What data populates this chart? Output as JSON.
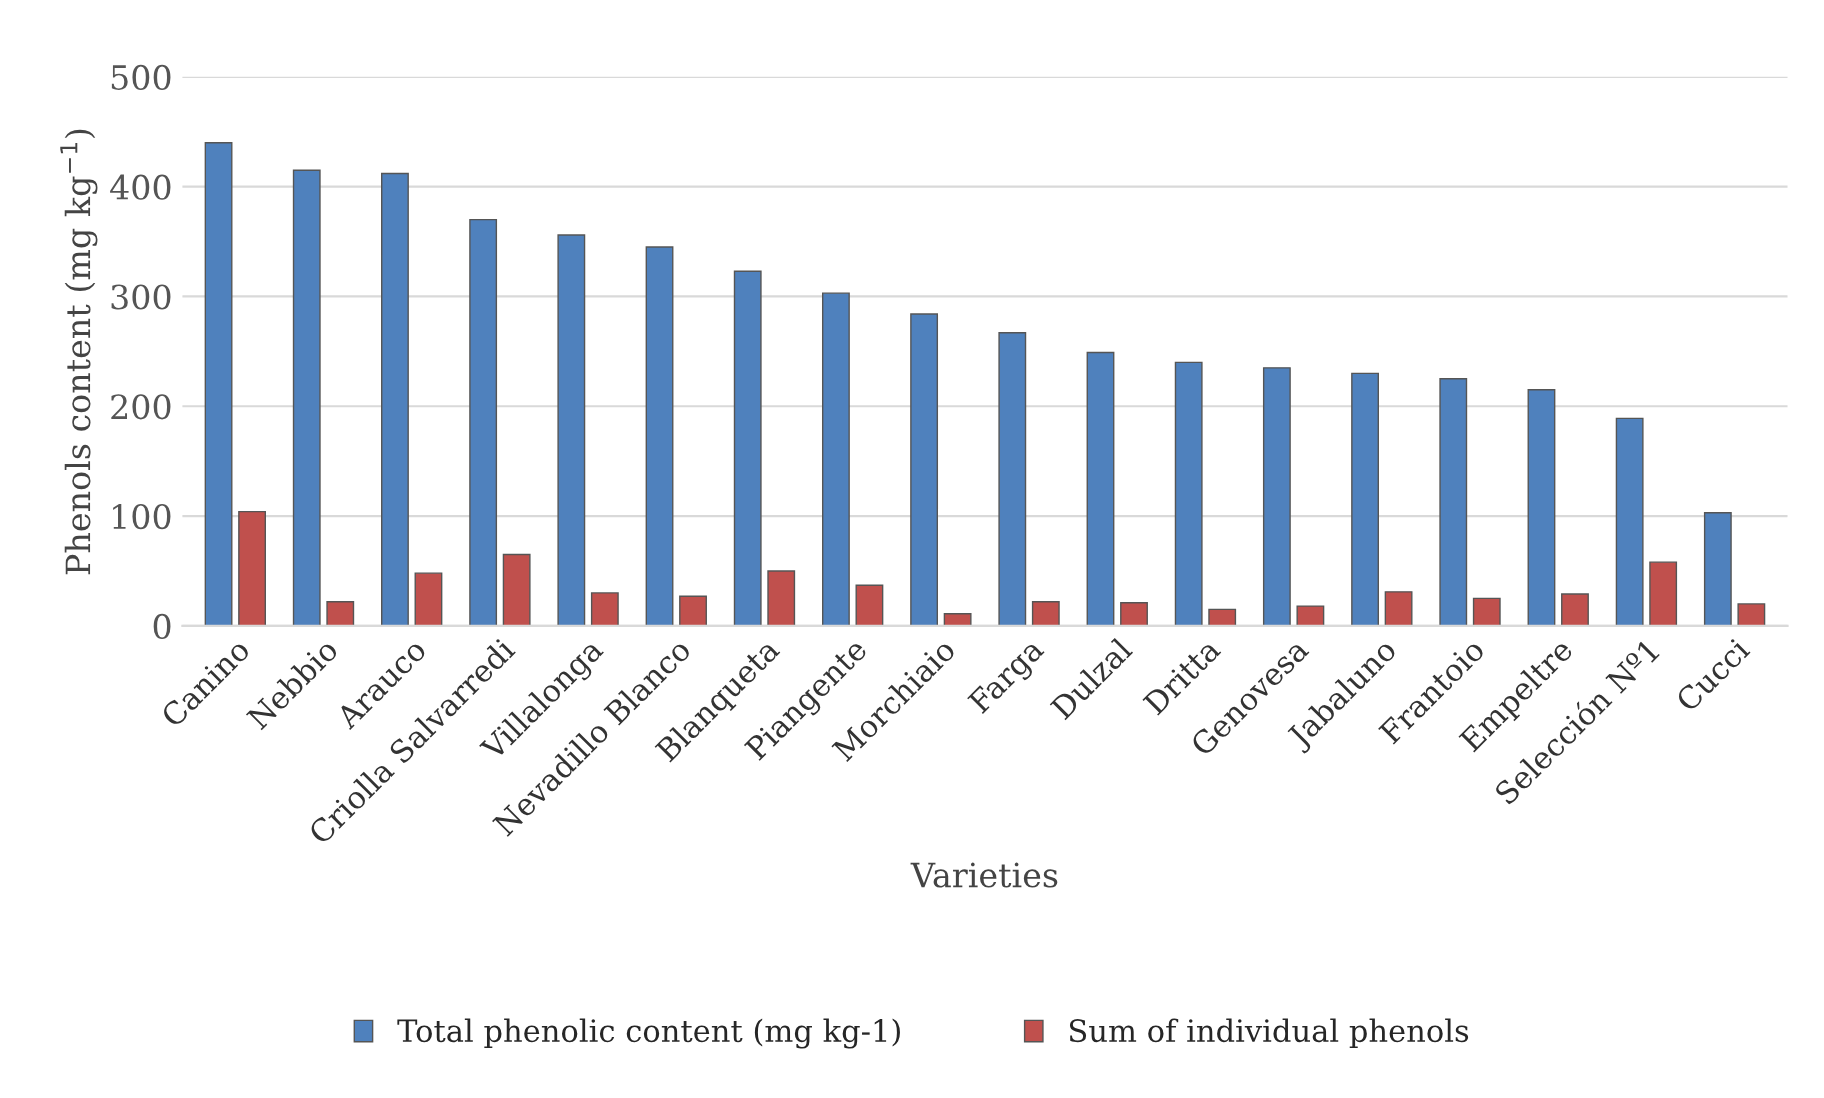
{
  "chart_data": {
    "type": "bar",
    "xlabel": "Varieties",
    "ylabel": "Phenols content (mg kg$^{−1}$)",
    "categories": [
      "Canino",
      "Nebbio",
      "Arauco",
      "Criolla Salvarredi",
      "Villalonga",
      "Nevadillo Blanco",
      "Blanqueta",
      "Piangente",
      "Morchiaio",
      "Farga",
      "Dulzal",
      "Dritta",
      "Genovesa",
      "Jabaluno",
      "Frantoio",
      "Empeltre",
      "Selección Nº1",
      "Cucci"
    ],
    "series": [
      {
        "name": "Total phenolic content (mg kg-1)",
        "color": "#4f81bd",
        "values": [
          440,
          415,
          412,
          370,
          356,
          345,
          323,
          303,
          284,
          267,
          249,
          240,
          235,
          230,
          225,
          215,
          189,
          103
        ]
      },
      {
        "name": "Sum of individual phenols",
        "color": "#c0504d",
        "values": [
          104,
          22,
          48,
          65,
          30,
          27,
          50,
          37,
          11,
          22,
          21,
          15,
          18,
          31,
          25,
          29,
          58,
          20
        ]
      }
    ],
    "ylim": [
      0,
      500
    ],
    "yticks": [
      0,
      100,
      200,
      300,
      400,
      500
    ],
    "grid": "y",
    "legend": "bottom"
  }
}
